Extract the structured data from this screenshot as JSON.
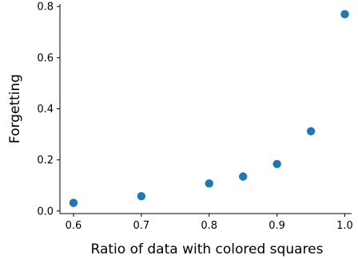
{
  "chart_data": {
    "type": "scatter",
    "title": "",
    "xlabel": "Ratio of data with colored squares",
    "ylabel": "Forgetting",
    "xlim": [
      0.58,
      1.01
    ],
    "ylim": [
      -0.01,
      0.81
    ],
    "xticks": [
      0.6,
      0.7,
      0.8,
      0.9,
      1.0
    ],
    "xtick_labels": [
      "0.6",
      "0.7",
      "0.8",
      "0.9",
      "1.0"
    ],
    "yticks": [
      0.0,
      0.2,
      0.4,
      0.6,
      0.8
    ],
    "ytick_labels": [
      "0.0",
      "0.2",
      "0.4",
      "0.6",
      "0.8"
    ],
    "grid": false,
    "color": "#1f77b4",
    "x": [
      0.6,
      0.7,
      0.8,
      0.85,
      0.9,
      0.95,
      1.0
    ],
    "y": [
      0.032,
      0.058,
      0.108,
      0.135,
      0.184,
      0.312,
      0.77
    ]
  }
}
